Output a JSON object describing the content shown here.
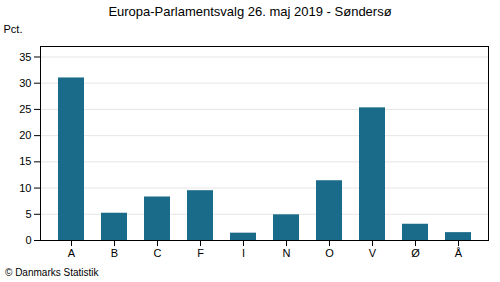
{
  "chart_data": {
    "type": "bar",
    "title": "Europa-Parlamentsvalg 26. maj 2019 - Søndersø",
    "ylabel": "Pct.",
    "caption": "© Danmarks Statistik",
    "categories": [
      "A",
      "B",
      "C",
      "F",
      "I",
      "N",
      "O",
      "V",
      "Ø",
      "Å"
    ],
    "values": [
      31.0,
      5.2,
      8.3,
      9.5,
      1.4,
      4.9,
      11.4,
      25.3,
      3.1,
      1.5
    ],
    "color": "#1a6b8a",
    "ylim": [
      0,
      37
    ],
    "yticks": [
      0,
      5,
      10,
      15,
      20,
      25,
      30,
      35
    ],
    "grid": true
  }
}
